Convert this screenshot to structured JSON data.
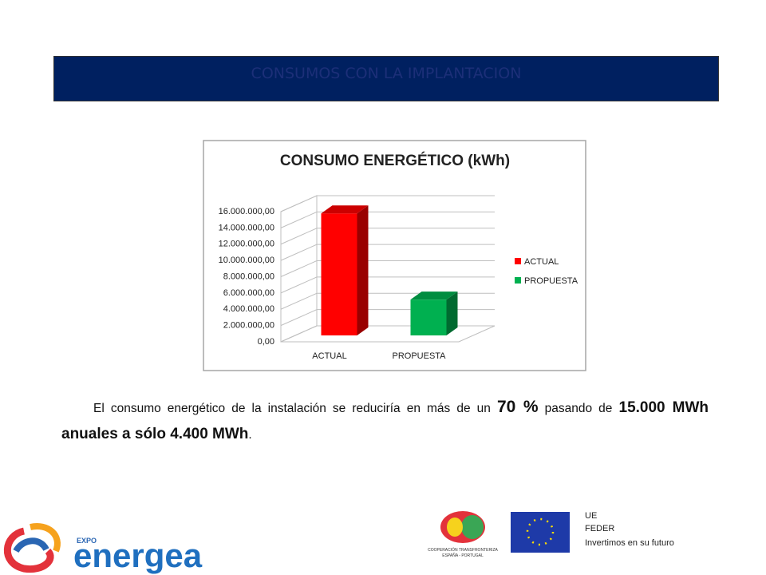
{
  "header": {
    "title": "CONSUMOS  CON LA IMPLANTACION"
  },
  "chart_data": {
    "type": "bar3d",
    "title": "CONSUMO ENERGÉTICO (kWh)",
    "categories": [
      "ACTUAL",
      "PROPUESTA"
    ],
    "values": [
      15000000,
      4400000
    ],
    "colors": [
      "#ff0000",
      "#00b050"
    ],
    "ylim": [
      0,
      16000000
    ],
    "yticks": [
      {
        "value": 0,
        "label": "0,00"
      },
      {
        "value": 2000000,
        "label": "2.000.000,00"
      },
      {
        "value": 4000000,
        "label": "4.000.000,00"
      },
      {
        "value": 6000000,
        "label": "6.000.000,00"
      },
      {
        "value": 8000000,
        "label": "8.000.000,00"
      },
      {
        "value": 10000000,
        "label": "10.000.000,00"
      },
      {
        "value": 12000000,
        "label": "12.000.000,00"
      },
      {
        "value": 14000000,
        "label": "14.000.000,00"
      },
      {
        "value": 16000000,
        "label": "16.000.000,00"
      }
    ],
    "grid": true,
    "legend": "right"
  },
  "paragraph": [
    "El consumo energético de la instalación se reduciría en más de un",
    "70 %",
    "pasando de",
    "15.000 MWh anuales a sólo 4.400 MWh",
    "."
  ],
  "footer": {
    "logo_small": "EXPO",
    "logo_big": "energea",
    "coop_lines": [
      "COOPERACIÓN TRANSFRONTERIZA",
      "ESPAÑA - PORTUGAL"
    ],
    "eu_lines": [
      "UE",
      "FEDER",
      "Invertimos en su futuro"
    ]
  }
}
